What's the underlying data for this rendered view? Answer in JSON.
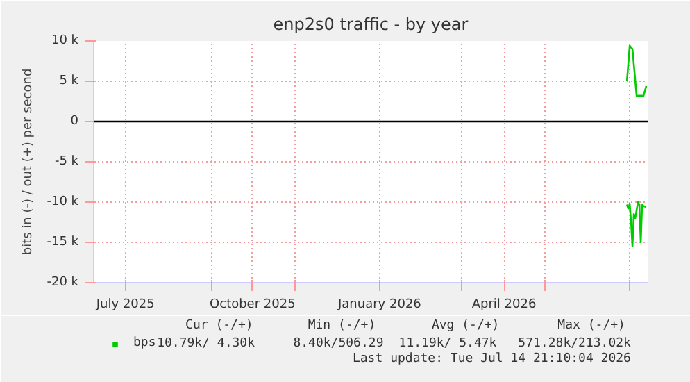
{
  "chart_data": {
    "type": "line",
    "title": "enp2s0 traffic - by year",
    "ylabel": "bits in (-) / out (+) per second",
    "xlim": [
      "2025-06-08",
      "2026-07-14"
    ],
    "xticks": [
      {
        "value": "2025-07-01",
        "label": "July 2025"
      },
      {
        "value": "2025-09-01",
        "label": null
      },
      {
        "value": "2025-10-01",
        "label": "October 2025"
      },
      {
        "value": "2025-11-01",
        "label": null
      },
      {
        "value": "2026-01-01",
        "label": "January 2026"
      },
      {
        "value": "2026-03-01",
        "label": null
      },
      {
        "value": "2026-04-01",
        "label": "April 2026"
      },
      {
        "value": "2026-05-01",
        "label": null
      },
      {
        "value": "2026-07-01",
        "label": null
      }
    ],
    "ylim": [
      -20000,
      10000
    ],
    "yticks": [
      {
        "value": -20000,
        "label": "-20 k"
      },
      {
        "value": -15000,
        "label": "-15 k"
      },
      {
        "value": -10000,
        "label": "-10 k"
      },
      {
        "value": -5000,
        "label": "-5 k"
      },
      {
        "value": 0,
        "label": "0"
      },
      {
        "value": 5000,
        "label": "5 k"
      },
      {
        "value": 10000,
        "label": "10 k"
      }
    ],
    "grid": true,
    "legend": "bottom left",
    "series": [
      {
        "name": "bps",
        "color": "#00cc00",
        "x": [
          "2026-06-29",
          "2026-07-01",
          "2026-07-03",
          "2026-07-06",
          "2026-07-11",
          "2026-07-13"
        ],
        "values": [
          5000,
          9400,
          9000,
          3200,
          3200,
          4400
        ]
      },
      {
        "color": "#00cc00",
        "x": [
          "2026-06-29",
          "2026-06-30",
          "2026-07-01",
          "2026-07-02",
          "2026-07-03",
          "2026-07-04",
          "2026-07-05",
          "2026-07-07",
          "2026-07-08",
          "2026-07-09",
          "2026-07-10",
          "2026-07-11",
          "2026-07-13"
        ],
        "values": [
          -10300,
          -10800,
          -10200,
          -12500,
          -15500,
          -11500,
          -12000,
          -10000,
          -10300,
          -15000,
          -10300,
          -10500,
          -10600
        ]
      }
    ],
    "ref_lines": [
      {
        "axis": "y",
        "value": 0,
        "color": "#000000"
      }
    ],
    "annotations": [
      "Cur (-/+)",
      "Min (-/+)",
      "Avg (-/+)",
      "Max (-/+)",
      "10.79k/   4.30k",
      "8.40k/506.29",
      "11.19k/   5.47k",
      "571.28k/213.02k",
      "Last update: Tue Jul 14 21:10:04 2026"
    ]
  }
}
